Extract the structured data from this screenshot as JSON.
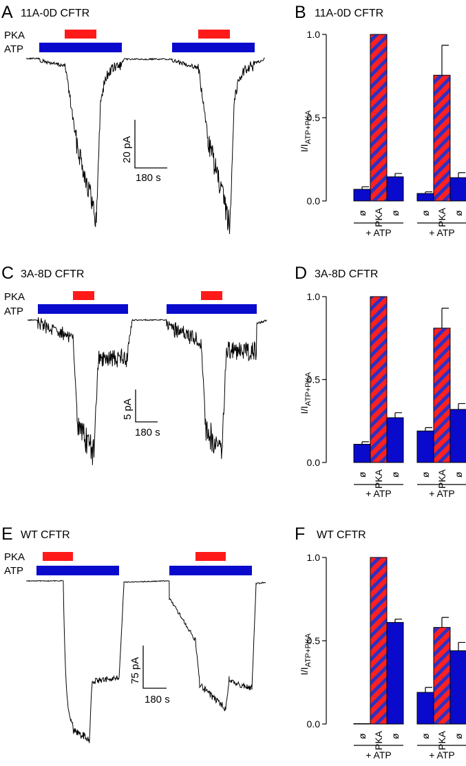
{
  "colors": {
    "pka": "#ff1a1a",
    "atp": "#0a0acc",
    "bar_blue": "#0a0acc",
    "bar_red": "#ff2020",
    "trace": "#000000"
  },
  "panels": [
    {
      "trace_letter": "A",
      "trace_title": "11A-0D CFTR",
      "pka_label": "PKA",
      "atp_label": "ATP",
      "scale_y_label": "20 pA",
      "scale_x_label": "180 s",
      "bar_letter": "B",
      "bar_title": "11A-0D CFTR"
    },
    {
      "trace_letter": "C",
      "trace_title": "3A-8D CFTR",
      "pka_label": "PKA",
      "atp_label": "ATP",
      "scale_y_label": "5 pA",
      "scale_x_label": "180 s",
      "bar_letter": "D",
      "bar_title": "3A-8D CFTR"
    },
    {
      "trace_letter": "E",
      "trace_title": "WT CFTR",
      "pka_label": "PKA",
      "atp_label": "ATP",
      "scale_y_label": "75 pA",
      "scale_x_label": "180 s",
      "bar_letter": "F",
      "bar_title": "WT CFTR"
    }
  ],
  "chart_data": [
    {
      "type": "bar",
      "title": "11A-0D CFTR",
      "ylabel_main": "I/I",
      "ylabel_sub": "ATP+PKA",
      "ylim": [
        0,
        1.0
      ],
      "yticks": [
        0.0,
        0.5,
        1.0
      ],
      "ytick_labels": [
        "0.0",
        "0.5",
        "1.0"
      ],
      "groups": [
        {
          "label": "+ ATP",
          "categories": [
            "ø",
            "PKA",
            "ø"
          ],
          "values": [
            0.07,
            1.0,
            0.145
          ],
          "errors": [
            0.015,
            0.0,
            0.02
          ]
        },
        {
          "label": "+ ATP",
          "categories": [
            "ø",
            "PKA",
            "ø"
          ],
          "values": [
            0.045,
            0.755,
            0.14
          ],
          "errors": [
            0.01,
            0.18,
            0.03
          ]
        }
      ]
    },
    {
      "type": "bar",
      "title": "3A-8D CFTR",
      "ylabel_main": "I/I",
      "ylabel_sub": "ATP+PKA",
      "ylim": [
        0,
        1.0
      ],
      "yticks": [
        0.0,
        0.5,
        1.0
      ],
      "ytick_labels": [
        "0.0",
        "0.5",
        "1.0"
      ],
      "groups": [
        {
          "label": "+ ATP",
          "categories": [
            "ø",
            "PKA",
            "ø"
          ],
          "values": [
            0.11,
            1.0,
            0.27
          ],
          "errors": [
            0.015,
            0.0,
            0.03
          ]
        },
        {
          "label": "+ ATP",
          "categories": [
            "ø",
            "PKA",
            "ø"
          ],
          "values": [
            0.19,
            0.81,
            0.32
          ],
          "errors": [
            0.02,
            0.12,
            0.035
          ]
        }
      ]
    },
    {
      "type": "bar",
      "title": "WT CFTR",
      "ylabel_main": "I/I",
      "ylabel_sub": "ATP+PKA",
      "ylim": [
        0,
        1.0
      ],
      "yticks": [
        0.0,
        0.5,
        1.0
      ],
      "ytick_labels": [
        "0.0",
        "0.5",
        "1.0"
      ],
      "groups": [
        {
          "label": "+ ATP",
          "categories": [
            "ø",
            "PKA",
            "ø"
          ],
          "values": [
            0.0,
            1.0,
            0.61
          ],
          "errors": [
            0.0,
            0.0,
            0.02
          ]
        },
        {
          "label": "+ ATP",
          "categories": [
            "ø",
            "PKA",
            "ø"
          ],
          "values": [
            0.19,
            0.58,
            0.44
          ],
          "errors": [
            0.03,
            0.06,
            0.05
          ]
        }
      ]
    }
  ]
}
